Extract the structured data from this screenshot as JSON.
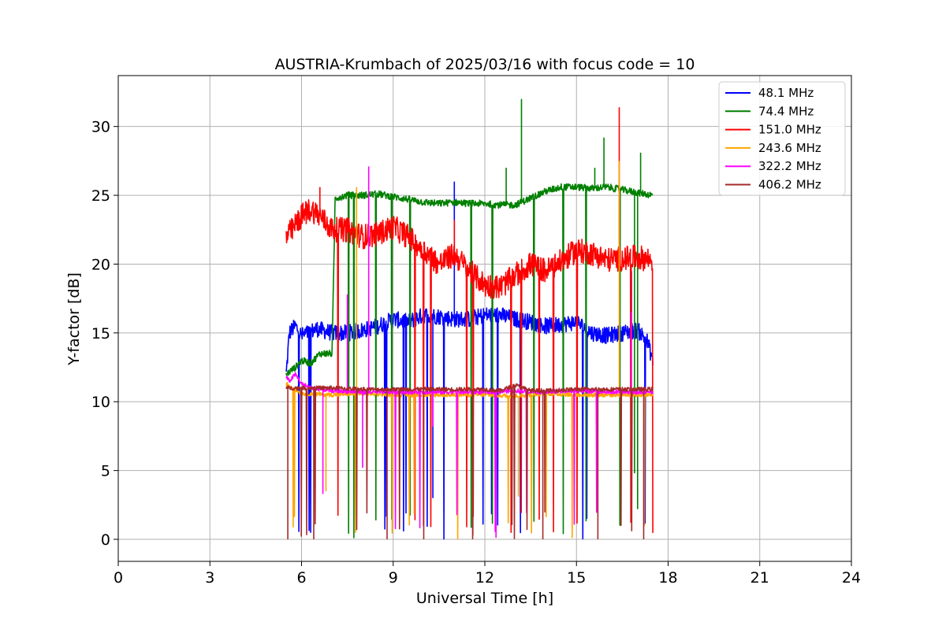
{
  "chart_data": {
    "type": "line",
    "title": "AUSTRIA-Krumbach of 2025/03/16 with focus code = 10",
    "xlabel": "Universal Time [h]",
    "ylabel": "Y-factor [dB]",
    "xlim": [
      0,
      24
    ],
    "ylim": [
      -1.6,
      33.7
    ],
    "xticks": [
      0,
      3,
      6,
      9,
      12,
      15,
      18,
      21,
      24
    ],
    "yticks": [
      0,
      5,
      10,
      15,
      20,
      25,
      30
    ],
    "grid": true,
    "legend_position": "top-right",
    "series": [
      {
        "name": " 48.1 MHz",
        "color": "#0000ff",
        "x": [
          5.5,
          5.6,
          5.8,
          6.0,
          6.5,
          7.0,
          7.5,
          8.0,
          8.5,
          9.0,
          9.5,
          10.0,
          10.5,
          11.0,
          11.5,
          12.0,
          12.5,
          13.0,
          13.5,
          14.0,
          14.5,
          15.0,
          15.5,
          16.0,
          16.5,
          17.0,
          17.3,
          17.5
        ],
        "values": [
          12.0,
          15.0,
          15.5,
          14.8,
          15.3,
          15.0,
          15.0,
          15.2,
          15.5,
          16.0,
          15.8,
          16.3,
          16.2,
          16.0,
          16.0,
          16.3,
          16.3,
          16.0,
          15.8,
          15.5,
          15.6,
          15.8,
          15.0,
          14.8,
          15.0,
          15.2,
          14.5,
          13.0
        ],
        "spikes": [
          [
            10.3,
            3.0
          ],
          [
            11.0,
            26.0
          ],
          [
            16.8,
            19.5
          ]
        ]
      },
      {
        "name": " 74.4 MHz",
        "color": "#008000",
        "x": [
          5.5,
          5.8,
          6.0,
          6.3,
          6.6,
          7.0,
          7.1,
          7.5,
          8.0,
          8.5,
          9.0,
          9.5,
          10.0,
          10.5,
          11.0,
          11.5,
          12.0,
          12.5,
          13.0,
          13.5,
          14.0,
          14.5,
          15.0,
          15.5,
          16.0,
          16.5,
          17.0,
          17.5
        ],
        "values": [
          12.0,
          12.5,
          13.0,
          12.8,
          13.5,
          13.5,
          24.8,
          25.0,
          25.0,
          25.1,
          24.9,
          24.7,
          24.5,
          24.4,
          24.5,
          24.4,
          24.4,
          24.3,
          24.3,
          24.8,
          25.3,
          25.6,
          25.6,
          25.5,
          25.6,
          25.4,
          25.2,
          25.0
        ],
        "spikes": [
          [
            13.2,
            32.0
          ],
          [
            15.9,
            29.2
          ],
          [
            17.1,
            28.1
          ],
          [
            16.9,
            4.8
          ],
          [
            12.7,
            27.0
          ],
          [
            15.6,
            27.0
          ],
          [
            17.0,
            2.2
          ]
        ]
      },
      {
        "name": " 151.0 MHz",
        "color": "#ff0000",
        "x": [
          5.5,
          5.7,
          6.0,
          6.3,
          6.6,
          7.0,
          7.5,
          8.0,
          8.5,
          9.0,
          9.5,
          10.0,
          10.5,
          11.0,
          11.5,
          12.0,
          12.5,
          13.0,
          13.5,
          14.0,
          14.5,
          15.0,
          15.5,
          16.0,
          16.5,
          17.0,
          17.5
        ],
        "values": [
          22.0,
          22.5,
          23.5,
          24.0,
          23.5,
          22.5,
          22.5,
          22.0,
          22.2,
          22.7,
          22.0,
          21.0,
          20.0,
          20.7,
          19.5,
          18.5,
          18.3,
          19.2,
          20.0,
          19.5,
          20.2,
          21.0,
          20.8,
          20.3,
          20.4,
          20.5,
          20.3
        ],
        "spikes": [
          [
            16.4,
            31.4
          ],
          [
            6.6,
            25.6
          ],
          [
            11.0,
            23.2
          ]
        ]
      },
      {
        "name": " 243.6 MHz",
        "color": "#ffa500",
        "x": [
          5.5,
          6.0,
          7.0,
          8.0,
          9.0,
          10.0,
          11.0,
          12.0,
          13.0,
          14.0,
          15.0,
          16.0,
          17.0,
          17.5
        ],
        "values": [
          11.3,
          10.6,
          10.5,
          10.6,
          10.5,
          10.5,
          10.5,
          10.5,
          10.4,
          10.6,
          10.5,
          10.5,
          10.5,
          10.5
        ],
        "spikes": [
          [
            16.4,
            27.5
          ],
          [
            7.8,
            25.6
          ],
          [
            13.1,
            3.1
          ],
          [
            6.8,
            3.5
          ]
        ]
      },
      {
        "name": " 322.2 MHz",
        "color": "#ff00ff",
        "x": [
          5.5,
          5.6,
          5.8,
          6.0,
          6.3,
          7.0,
          8.0,
          9.0,
          10.0,
          11.0,
          12.0,
          13.0,
          14.0,
          15.0,
          16.0,
          17.0,
          17.5
        ],
        "values": [
          11.8,
          11.5,
          12.0,
          11.3,
          11.0,
          10.8,
          10.7,
          10.7,
          10.7,
          10.7,
          10.7,
          10.8,
          10.7,
          10.8,
          10.7,
          10.7,
          10.7
        ],
        "spikes": [
          [
            8.2,
            27.1
          ],
          [
            6.7,
            3.3
          ],
          [
            8.0,
            5.2
          ],
          [
            10.3,
            8.2
          ],
          [
            16.8,
            16.5
          ],
          [
            7.5,
            17.8
          ]
        ]
      },
      {
        "name": " 406.2 MHz",
        "color": "#a52a2a",
        "x": [
          5.5,
          6.0,
          7.0,
          8.0,
          9.0,
          10.0,
          11.0,
          12.0,
          12.5,
          13.0,
          13.5,
          14.0,
          15.0,
          16.0,
          17.0,
          17.5
        ],
        "values": [
          11.0,
          11.0,
          11.0,
          10.9,
          10.9,
          10.9,
          10.9,
          10.9,
          10.8,
          11.2,
          10.8,
          10.8,
          10.9,
          10.9,
          10.9,
          10.9
        ],
        "spikes": [
          [
            5.55,
            0.0
          ],
          [
            6.4,
            0.0
          ],
          [
            8.8,
            0.0
          ],
          [
            10.0,
            0.0
          ],
          [
            11.6,
            0.0
          ],
          [
            13.9,
            0.0
          ],
          [
            15.7,
            0.0
          ],
          [
            17.2,
            0.0
          ]
        ]
      }
    ]
  }
}
